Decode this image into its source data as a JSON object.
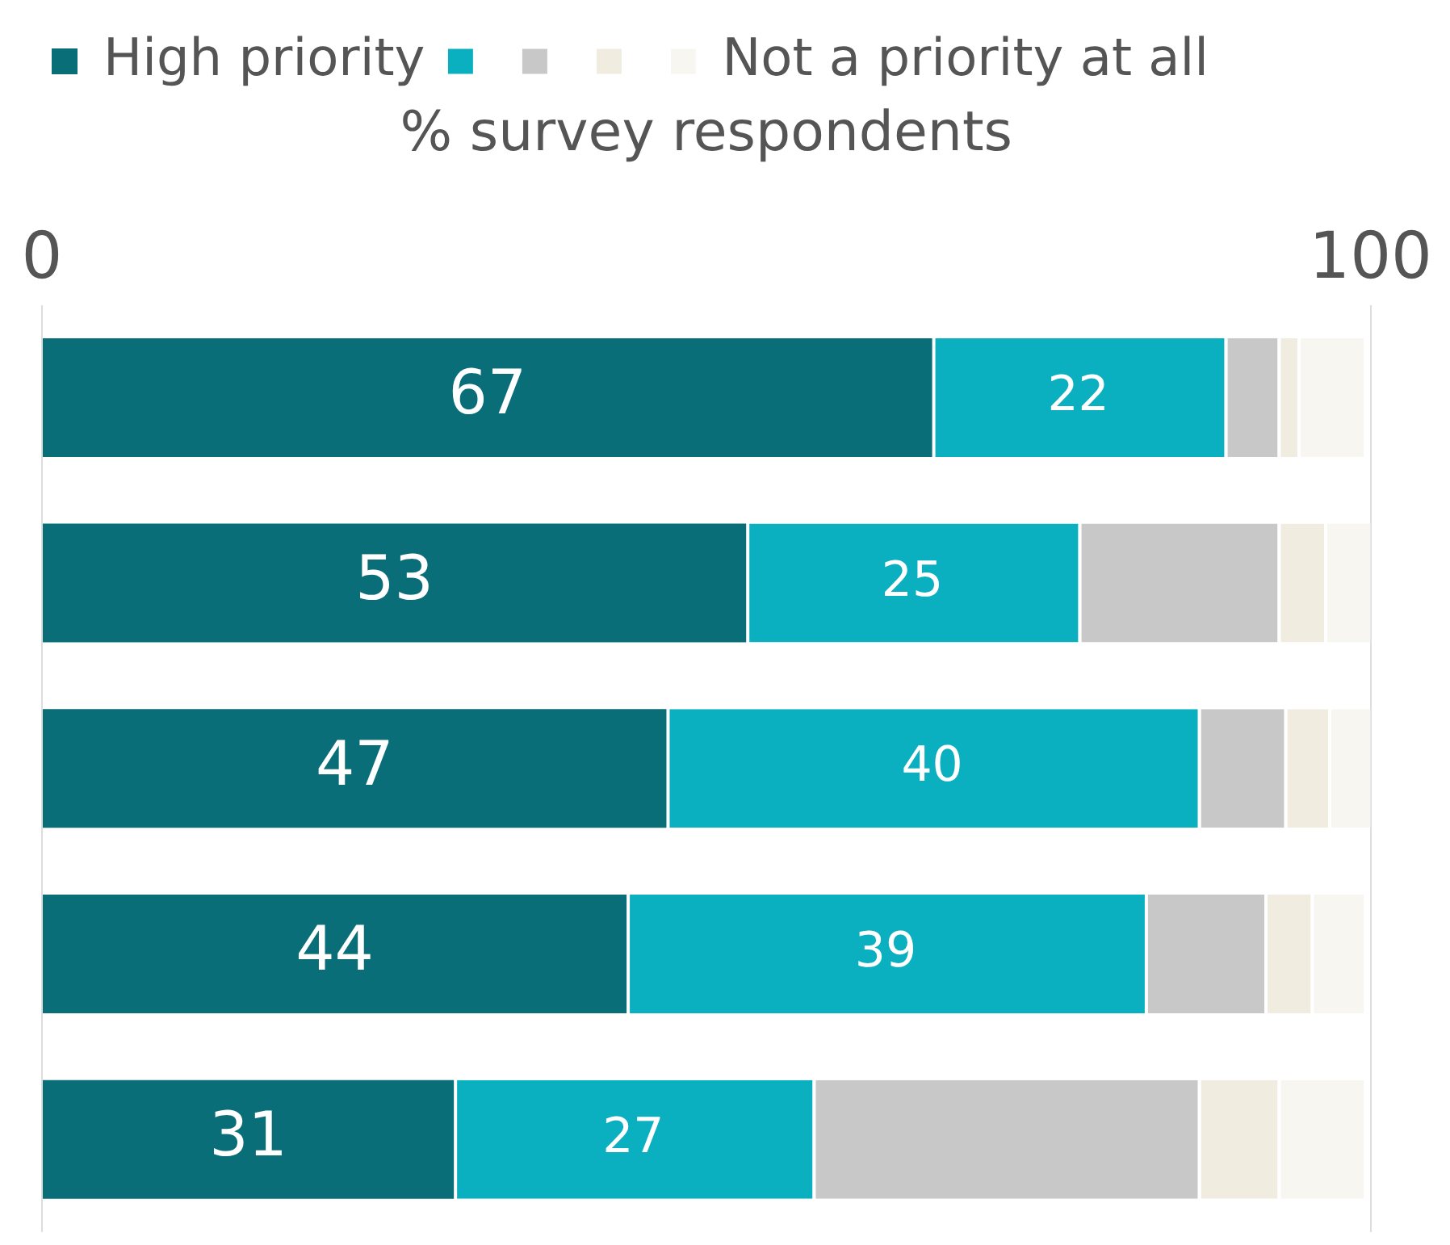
{
  "chart_data": {
    "type": "bar",
    "orientation": "horizontal",
    "stacked": true,
    "xlabel": "% survey respondents",
    "categories": [
      null,
      null,
      null,
      null,
      null
    ],
    "series": [
      {
        "name": "High priority",
        "color": "#0a6e78",
        "values": [
          67,
          53,
          47,
          44,
          31
        ],
        "value_labels": [
          "67",
          "53",
          "47",
          "44",
          "31"
        ]
      },
      {
        "color": "#0ab0bf",
        "values": [
          22,
          25,
          40,
          39,
          27
        ],
        "value_labels": [
          "22",
          "25",
          "40",
          "39",
          "27"
        ]
      },
      {
        "color": "#c8c8c8",
        "values": [
          4,
          15,
          6.5,
          9,
          29
        ]
      },
      {
        "color": "#f0ede0",
        "values": [
          1.5,
          3.5,
          3.3,
          3.5,
          6
        ]
      },
      {
        "name": "Not a priority at all",
        "color": "#f8f6f0",
        "values": [
          5,
          3.5,
          3.2,
          4,
          6.5
        ]
      }
    ],
    "xlim": [
      0,
      100
    ],
    "xticks": [
      0,
      100
    ],
    "grid": "x",
    "legend": "top left",
    "tick_labels": "x"
  }
}
